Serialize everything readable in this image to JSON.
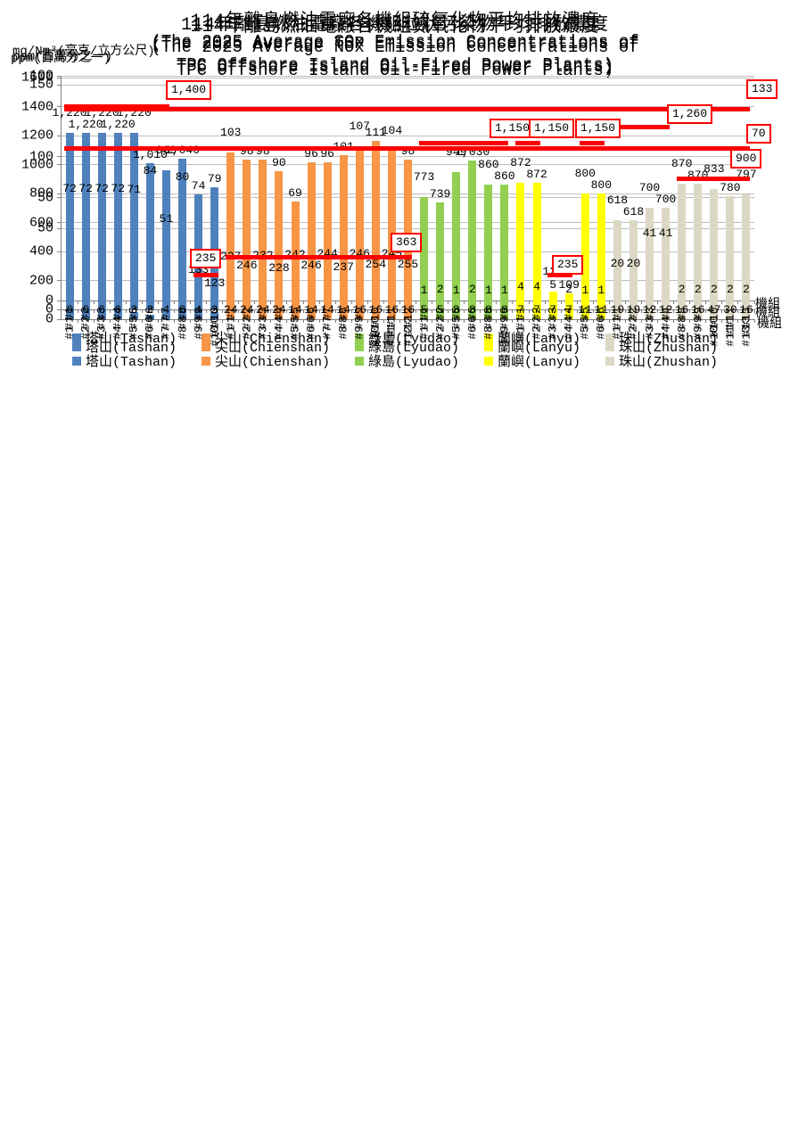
{
  "colors": {
    "tashan": "#4F81BD",
    "chienshan": "#F79646",
    "lyudao": "#92D050",
    "lanyu": "#FFFF00",
    "zhushan": "#DDD8C3",
    "limit": "#FF0000",
    "grid": "#BFBFBF",
    "axis": "#808080"
  },
  "legend": [
    {
      "label": "塔山(Tashan)",
      "color_key": "tashan"
    },
    {
      "label": "尖山(Chienshan)",
      "color_key": "chienshan"
    },
    {
      "label": "綠島(Lyudao)",
      "color_key": "lyudao"
    },
    {
      "label": "蘭嶼(Lanyu)",
      "color_key": "lanyu"
    },
    {
      "label": "珠山(Zhushan)",
      "color_key": "zhushan"
    }
  ],
  "chart_data": [
    {
      "type": "bar",
      "title": "114年離島燃油電廠各機組硫氧化物平均排放濃度",
      "subtitle_lines": [
        "(The 2025 Average SOx Emission Concentrations of",
        "TPC Offshore Island Oil-Fired Power Plants)"
      ],
      "y_unit": "ppm(百萬分之一)",
      "x_unit": "機組",
      "ylim": [
        0,
        150
      ],
      "y_ticks": [
        0,
        50,
        100,
        150
      ],
      "grid": true,
      "legend_position": "bottom",
      "stagger_labels": true,
      "fixed_label_row": false,
      "series": [
        {
          "name": "塔山(Tashan)",
          "color_key": "tashan",
          "units": [
            "#1",
            "#2",
            "#3",
            "#4",
            "#5",
            "#6",
            "#7",
            "#8",
            "#9",
            "#10"
          ],
          "values": [
            72,
            72,
            72,
            72,
            71,
            84,
            51,
            80,
            74,
            79
          ]
        },
        {
          "name": "尖山(Chienshan)",
          "color_key": "chienshan",
          "units": [
            "#1",
            "#2",
            "#3",
            "#4",
            "#5",
            "#6",
            "#7",
            "#8",
            "#9",
            "#10",
            "#11",
            "#12"
          ],
          "values": [
            103,
            98,
            98,
            90,
            69,
            96,
            96,
            101,
            107,
            111,
            104,
            98
          ]
        },
        {
          "name": "綠島(Lyudao)",
          "color_key": "lyudao",
          "units": [
            "#1",
            "#2",
            "#5",
            "#6",
            "#8",
            "#9"
          ],
          "values": [
            1,
            2,
            1,
            2,
            1,
            1
          ]
        },
        {
          "name": "蘭嶼(Lanyu)",
          "color_key": "lanyu",
          "units": [
            "#1",
            "#2",
            "#3",
            "#4",
            "#5",
            "#6"
          ],
          "values": [
            4,
            4,
            5,
            2,
            1,
            1
          ]
        },
        {
          "name": "珠山(Zhushan)",
          "color_key": "zhushan",
          "units": [
            "#1",
            "#2",
            "#3",
            "#4",
            "#8",
            "#9",
            "#10",
            "#11",
            "#13"
          ],
          "values": [
            20,
            20,
            41,
            41,
            2,
            2,
            2,
            2,
            2
          ]
        }
      ],
      "limits": [
        {
          "label": "133",
          "value": 133,
          "from": 0,
          "to": 42,
          "label_pos": [
            768,
            -6
          ]
        }
      ]
    },
    {
      "type": "bar",
      "title": "114年離島燃油電廠各機組氮氧化物平均排放濃度",
      "subtitle_lines": [
        "(The 2025 Average NOx Emission Concentrations of",
        "TPC Offshore Island Oil-Fired Power Plants)"
      ],
      "y_unit": "ppm(百萬分之一)",
      "x_unit": "機組",
      "ylim": [
        0,
        1600
      ],
      "y_ticks": [
        0,
        200,
        400,
        600,
        800,
        1000,
        1200,
        1400,
        1600
      ],
      "grid": true,
      "legend_position": "bottom",
      "stagger_labels": true,
      "fixed_label_row": false,
      "series": [
        {
          "name": "塔山(Tashan)",
          "color_key": "tashan",
          "units": [
            "#1",
            "#2",
            "#3",
            "#4",
            "#5",
            "#6",
            "#7",
            "#8",
            "#9",
            "#10"
          ],
          "values": [
            1220,
            1220,
            1220,
            1220,
            1220,
            1010,
            963,
            1040,
            133,
            123
          ]
        },
        {
          "name": "尖山(Chienshan)",
          "color_key": "chienshan",
          "units": [
            "#1",
            "#2",
            "#3",
            "#4",
            "#5",
            "#6",
            "#7",
            "#8",
            "#9",
            "#10",
            "#11",
            "#12"
          ],
          "values": [
            227,
            246,
            232,
            228,
            242,
            246,
            244,
            237,
            246,
            254,
            245,
            255
          ]
        },
        {
          "name": "綠島(Lyudao)",
          "color_key": "lyudao",
          "units": [
            "#1",
            "#2",
            "#5",
            "#6",
            "#8",
            "#9"
          ],
          "values": [
            773,
            739,
            949,
            1030,
            860,
            860
          ]
        },
        {
          "name": "蘭嶼(Lanyu)",
          "color_key": "lanyu",
          "units": [
            "#1",
            "#2",
            "#3",
            "#4",
            "#5",
            "#6"
          ],
          "values": [
            872,
            872,
            126,
            109,
            800,
            800
          ]
        },
        {
          "name": "珠山(Zhushan)",
          "color_key": "zhushan",
          "units": [
            "#1",
            "#2",
            "#3",
            "#4",
            "#8",
            "#9",
            "#10",
            "#11",
            "#13"
          ],
          "values": [
            618,
            618,
            700,
            700,
            870,
            870,
            833,
            780,
            797
          ]
        }
      ],
      "limits": [
        {
          "label": "1,400",
          "value": 1400,
          "from": 0,
          "to": 6,
          "label_pos": [
            117,
            3
          ]
        },
        {
          "label": "235",
          "value": 235,
          "from": 8,
          "to": 9,
          "label_pos": [
            144,
            192
          ]
        },
        {
          "label": "363",
          "value": 363,
          "from": 10,
          "to": 21,
          "label_pos": [
            369,
            174
          ]
        },
        {
          "label": "1,150",
          "value": 1150,
          "from": 22,
          "to": 27,
          "label_pos": [
            480,
            46
          ]
        },
        {
          "label": "1,150",
          "value": 1150,
          "from": 28,
          "to": 29,
          "label_pos": [
            524,
            46
          ]
        },
        {
          "label": "235",
          "value": 235,
          "from": 30,
          "to": 31,
          "label_pos": [
            550,
            199
          ]
        },
        {
          "label": "1,150",
          "value": 1150,
          "from": 32,
          "to": 33,
          "label_pos": [
            576,
            46
          ]
        },
        {
          "label": "1,260",
          "value": 1260,
          "from": 34,
          "to": 37,
          "label_pos": [
            679,
            30
          ]
        },
        {
          "label": "900",
          "value": 900,
          "from": 38,
          "to": 42,
          "label_pos": [
            750,
            80
          ]
        }
      ]
    },
    {
      "type": "bar",
      "title": "114年離島燃油電廠各機組粒狀污染物平均排放濃度",
      "subtitle_lines": [
        "(The 2025 Average TSP Emission Concentrations of",
        "TPC Offshore Island Oil-Fired Power Plants)"
      ],
      "y_unit": "mg/Nm³(毫克/立方公尺)",
      "x_unit": "機組",
      "ylim": [
        0,
        100
      ],
      "y_ticks": [
        0,
        50,
        100
      ],
      "grid": true,
      "legend_position": "bottom",
      "stagger_labels": false,
      "fixed_label_row": true,
      "series": [
        {
          "name": "塔山(Tashan)",
          "color_key": "tashan",
          "units": [
            "#1",
            "#2",
            "#3",
            "#4",
            "#5",
            "#6",
            "#7",
            "#8",
            "#9",
            "#10"
          ],
          "values": [
            6,
            6,
            6,
            6,
            3,
            2,
            4,
            6,
            4,
            3
          ]
        },
        {
          "name": "尖山(Chienshan)",
          "color_key": "chienshan",
          "units": [
            "#1",
            "#2",
            "#3",
            "#4",
            "#5",
            "#6",
            "#7",
            "#8",
            "#9",
            "#10",
            "#11",
            "#12"
          ],
          "values": [
            24,
            24,
            24,
            24,
            14,
            14,
            14,
            14,
            16,
            16,
            16,
            16
          ]
        },
        {
          "name": "綠島(Lyudao)",
          "color_key": "lyudao",
          "units": [
            "#1",
            "#2",
            "#5",
            "#6",
            "#8",
            "#9"
          ],
          "values": [
            5,
            5,
            8,
            8,
            8,
            8
          ]
        },
        {
          "name": "蘭嶼(Lanyu)",
          "color_key": "lanyu",
          "units": [
            "#1",
            "#2",
            "#3",
            "#4",
            "#5",
            "#6"
          ],
          "values": [
            7,
            7,
            7,
            7,
            11,
            11
          ]
        },
        {
          "name": "珠山(Zhushan)",
          "color_key": "zhushan",
          "units": [
            "#1",
            "#2",
            "#3",
            "#4",
            "#8",
            "#9",
            "#10",
            "#11",
            "#13"
          ],
          "values": [
            19,
            19,
            12,
            12,
            16,
            16,
            47,
            30,
            16
          ]
        }
      ],
      "limits": [
        {
          "label": "70",
          "value": 70,
          "from": 0,
          "to": 42,
          "label_pos": [
            768,
            54
          ]
        }
      ]
    }
  ]
}
